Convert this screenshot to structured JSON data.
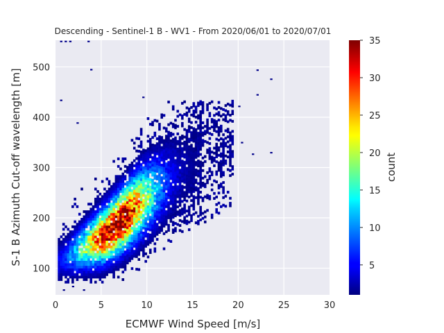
{
  "chart_data": {
    "type": "heatmap",
    "title": "Descending - Sentinel-1 B - WV1 - From 2020/06/01 to 2020/07/01",
    "xlabel": "ECMWF Wind Speed [m/s]",
    "ylabel": "S-1 B Azimuth Cut-off wavelength [m]",
    "xlim": [
      0,
      30
    ],
    "ylim": [
      47,
      553
    ],
    "xticks": [
      0,
      5,
      10,
      15,
      20,
      25,
      30
    ],
    "yticks": [
      100,
      200,
      300,
      400,
      500
    ],
    "grid": true,
    "colorbar": {
      "label": "count",
      "colormap": "jet",
      "range": [
        1,
        35
      ],
      "ticks": [
        5,
        10,
        15,
        20,
        25,
        30,
        35
      ]
    },
    "density_model": {
      "description": "2D histogram of counts; dense core along a linear trend",
      "trend_line": [
        [
          1.0,
          118
        ],
        [
          5.0,
          160
        ],
        [
          7.0,
          190
        ],
        [
          9.0,
          225
        ],
        [
          12.0,
          270
        ],
        [
          15.0,
          305
        ],
        [
          18.0,
          340
        ]
      ],
      "peak_region": {
        "x": 6.5,
        "y": 185,
        "count": 33
      }
    },
    "outliers": [
      {
        "x": 0.5,
        "y": 549
      },
      {
        "x": 1.0,
        "y": 549
      },
      {
        "x": 1.5,
        "y": 549
      },
      {
        "x": 3.5,
        "y": 549
      },
      {
        "x": 3.8,
        "y": 493
      },
      {
        "x": 0.5,
        "y": 432
      },
      {
        "x": 9.5,
        "y": 438
      },
      {
        "x": 22.0,
        "y": 492
      },
      {
        "x": 23.5,
        "y": 474
      },
      {
        "x": 22.0,
        "y": 443
      },
      {
        "x": 2.3,
        "y": 387
      },
      {
        "x": 20.3,
        "y": 348
      },
      {
        "x": 23.5,
        "y": 328
      },
      {
        "x": 21.5,
        "y": 325
      },
      {
        "x": 20.0,
        "y": 420
      },
      {
        "x": 0.8,
        "y": 55
      },
      {
        "x": 3.0,
        "y": 55
      },
      {
        "x": 1.8,
        "y": 62
      }
    ]
  }
}
